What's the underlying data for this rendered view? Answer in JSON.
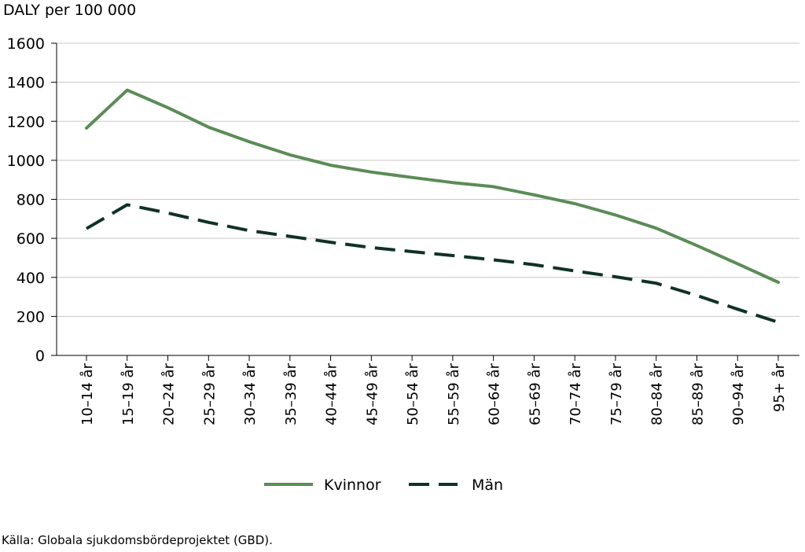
{
  "chart_data": {
    "type": "line",
    "ylabel": "DALY per 100 000",
    "ylim": [
      0,
      1600
    ],
    "yticks": [
      "0",
      "200",
      "400",
      "600",
      "800",
      "1000",
      "1200",
      "1400",
      "1600"
    ],
    "ytick_values": [
      0,
      200,
      400,
      600,
      800,
      1000,
      1200,
      1400,
      1600
    ],
    "categories": [
      "10–14 år",
      "15–19 år",
      "20–24 år",
      "25–29 år",
      "30–34 år",
      "35–39 år",
      "40–44 år",
      "45–49 år",
      "50–54 år",
      "55–59 år",
      "60–64 år",
      "65–69 år",
      "70–74 år",
      "75–79 år",
      "80–84 år",
      "85–89 år",
      "90–94 år",
      "95+ år"
    ],
    "series": [
      {
        "name": "Kvinnor",
        "color": "#5b8c57",
        "dash": "solid",
        "values": [
          1165,
          1360,
          1270,
          1170,
          1095,
          1028,
          975,
          940,
          912,
          886,
          865,
          823,
          778,
          720,
          652,
          563,
          470,
          375
        ]
      },
      {
        "name": "Män",
        "color": "#0f3226",
        "dash": "dashed",
        "values": [
          650,
          772,
          730,
          682,
          640,
          610,
          580,
          553,
          532,
          512,
          490,
          465,
          433,
          403,
          370,
          307,
          237,
          170
        ]
      }
    ],
    "grid": true,
    "legend_position": "bottom-center"
  },
  "source": "Källa: Globala sjukdomsbördeprojektet (GBD)."
}
